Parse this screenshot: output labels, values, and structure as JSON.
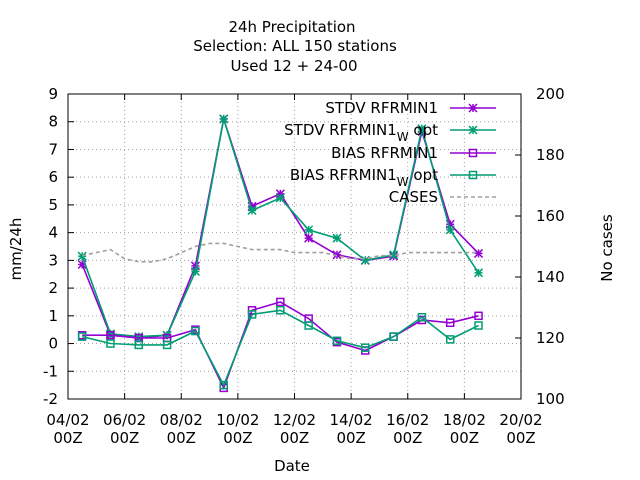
{
  "chart_data": {
    "type": "line",
    "title_lines": [
      "24h Precipitation",
      "Selection: ALL     150 stations",
      "Used  12 + 24-00"
    ],
    "xlabel": "Date",
    "ylabel": "mm/24h",
    "y2label": "No cases",
    "x_tick_labels": [
      [
        "04/02",
        "00Z"
      ],
      [
        "06/02",
        "00Z"
      ],
      [
        "08/02",
        "00Z"
      ],
      [
        "10/02",
        "00Z"
      ],
      [
        "12/02",
        "00Z"
      ],
      [
        "14/02",
        "00Z"
      ],
      [
        "16/02",
        "00Z"
      ],
      [
        "18/02",
        "00Z"
      ],
      [
        "20/02",
        "00Z"
      ]
    ],
    "xlim": [
      4,
      20
    ],
    "ylim": [
      -2,
      9
    ],
    "y_ticks": [
      -2,
      -1,
      0,
      1,
      2,
      3,
      4,
      5,
      6,
      7,
      8,
      9
    ],
    "y2lim": [
      100,
      200
    ],
    "y2_ticks": [
      100,
      120,
      140,
      160,
      180,
      200
    ],
    "grid": true,
    "legend_position": "top-right",
    "x": [
      4.5,
      5.5,
      6.5,
      7.5,
      8.5,
      9.5,
      10.5,
      11.5,
      12.5,
      13.5,
      14.5,
      15.5,
      16.5,
      17.5,
      18.5
    ],
    "series": [
      {
        "name": "STDV RFRMIN1",
        "color": "#9400d3",
        "marker": "x",
        "axis": "y",
        "values": [
          2.85,
          0.3,
          0.2,
          0.3,
          2.8,
          8.1,
          4.95,
          5.4,
          3.8,
          3.2,
          3.0,
          3.15,
          7.65,
          4.3,
          3.25
        ]
      },
      {
        "name": "STDV RFRMIN1 opt",
        "name_main": "STDV RFRMIN1",
        "name_sub": "W",
        "name_tail": " opt",
        "color": "#009e73",
        "marker": "x",
        "axis": "y",
        "values": [
          3.15,
          0.35,
          0.25,
          0.3,
          2.6,
          8.1,
          4.8,
          5.25,
          4.1,
          3.8,
          3.0,
          3.2,
          7.75,
          4.1,
          2.55
        ]
      },
      {
        "name": "BIAS RFRMIN1",
        "color": "#9400d3",
        "marker": "square",
        "axis": "y",
        "values": [
          0.3,
          0.3,
          0.2,
          0.2,
          0.5,
          -1.6,
          1.2,
          1.5,
          0.9,
          0.05,
          -0.25,
          0.25,
          0.85,
          0.75,
          1.0
        ]
      },
      {
        "name": "BIAS RFRMIN1 opt",
        "name_main": "BIAS RFRMIN1",
        "name_sub": "W",
        "name_tail": " opt",
        "color": "#009e73",
        "marker": "square",
        "axis": "y",
        "values": [
          0.25,
          0.0,
          -0.05,
          -0.05,
          0.45,
          -1.5,
          1.05,
          1.2,
          0.65,
          0.1,
          -0.15,
          0.25,
          0.95,
          0.15,
          0.65
        ]
      },
      {
        "name": "CASES",
        "color": "#a0a0a0",
        "marker": "none",
        "dashed": true,
        "axis": "y2",
        "x": [
          4.5,
          5.0,
          5.5,
          6.0,
          6.5,
          7.0,
          7.5,
          8.0,
          8.5,
          9.0,
          9.5,
          10.0,
          10.5,
          11.0,
          11.5,
          12.0,
          12.5,
          13.0,
          13.5,
          14.0,
          14.5,
          15.0,
          15.5,
          16.0,
          16.5,
          17.0,
          17.5,
          18.0,
          18.5
        ],
        "values": [
          147,
          148,
          149,
          146,
          145,
          145,
          146,
          148,
          150,
          151,
          151,
          150,
          149,
          149,
          149,
          148,
          148,
          148,
          147,
          146,
          146,
          147,
          147,
          148,
          148,
          148,
          148,
          148,
          148
        ]
      }
    ]
  }
}
